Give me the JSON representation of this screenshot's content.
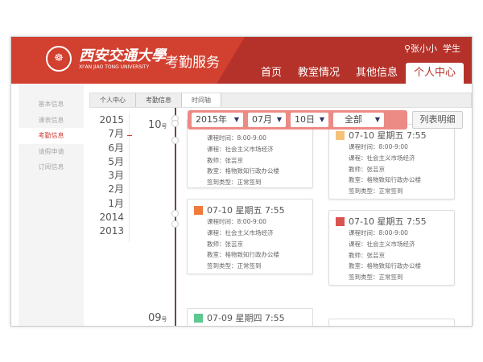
{
  "header": {
    "university_cn": "西安交通大學",
    "university_en": "XI'AN JIAO TONG UNIVERSITY",
    "service": "考勤服务",
    "user_icon": "person-icon",
    "user": "张小小",
    "role": "学生",
    "nav": [
      "首页",
      "教室情况",
      "其他信息",
      "个人中心"
    ],
    "active_nav": 3
  },
  "sidebar": {
    "items": [
      "基本信息",
      "课表信息",
      "考勤信息",
      "请假申请",
      "订阅信息"
    ],
    "active": 2
  },
  "breadcrumb": [
    "个人中心",
    "考勤信息",
    "时间轴"
  ],
  "years": [
    "2015",
    "7月",
    "6月",
    "5月",
    "3月",
    "2月",
    "1月",
    "2014",
    "2013"
  ],
  "days": [
    {
      "num": "10",
      "unit": "号"
    },
    {
      "num": "09",
      "unit": "号"
    }
  ],
  "filter": {
    "year": "2015年",
    "month": "07月",
    "day": "10日",
    "type": "全部"
  },
  "list_button": "列表明细",
  "cards": [
    {
      "title": "07-10 星期五 7:55",
      "color": "#f5c27a",
      "rows": [
        "课程时间：8:00-9:00",
        "课程：社会主义市场经济",
        "教师：张芸京",
        "教室：格物致知行政办公楼",
        "签到类型：正常签到"
      ]
    },
    {
      "title": "07-10 星期五 7:55",
      "color": "#f5c27a",
      "rows": [
        "课程时间：8:00-9:00",
        "课程：社会主义市场经济",
        "教师：张芸京",
        "教室：格物致知行政办公楼",
        "签到类型：正常签到"
      ]
    },
    {
      "title": "07-10 星期五 7:55",
      "color": "#ef7a3a",
      "rows": [
        "课程时间：8:00-9:00",
        "课程：社会主义市场经济",
        "教师：张芸京",
        "教室：格物致知行政办公楼",
        "签到类型：正常签到"
      ]
    },
    {
      "title": "07-10 星期五 7:55",
      "color": "#d9534f",
      "rows": [
        "课程时间：8:00-9:00",
        "课程：社会主义市场经济",
        "教师：张芸京",
        "教室：格物致知行政办公楼",
        "签到类型：正常签到"
      ]
    },
    {
      "title": "07-09 星期四 7:55",
      "color": "#5cc98f",
      "rows": []
    }
  ]
}
